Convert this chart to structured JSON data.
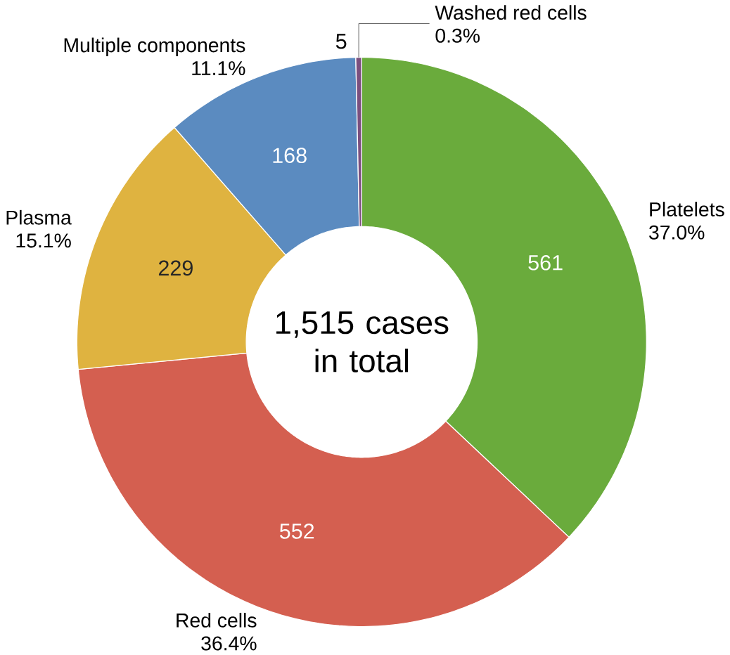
{
  "chart_data": {
    "type": "donut",
    "categories": [
      "Platelets",
      "Red cells",
      "Plasma",
      "Multiple components",
      "Washed red cells"
    ],
    "values": [
      561,
      552,
      229,
      168,
      5
    ],
    "colors": [
      "#6aab3c",
      "#d45f50",
      "#dfb340",
      "#5b8bc0",
      "#7b4f7e"
    ],
    "data_labels": true,
    "annotations": [
      "1,515 cases in total",
      "37.0%",
      "36.4%",
      "15.1%",
      "11.1%",
      "0.3%"
    ]
  }
}
